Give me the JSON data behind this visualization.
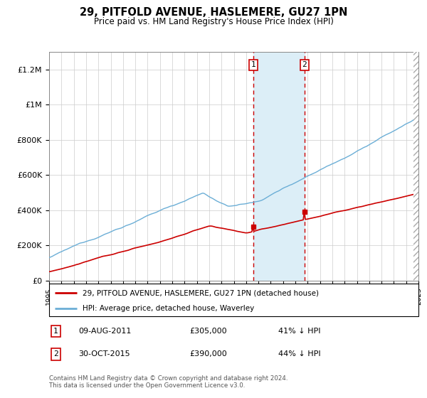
{
  "title": "29, PITFOLD AVENUE, HASLEMERE, GU27 1PN",
  "subtitle": "Price paid vs. HM Land Registry's House Price Index (HPI)",
  "hpi_label": "HPI: Average price, detached house, Waverley",
  "property_label": "29, PITFOLD AVENUE, HASLEMERE, GU27 1PN (detached house)",
  "t1_year_float": 2011.58,
  "t2_year_float": 2015.75,
  "t1_price": 305000,
  "t2_price": 390000,
  "t1_date": "09-AUG-2011",
  "t2_date": "30-OCT-2015",
  "t1_hpi": "41% ↓ HPI",
  "t2_hpi": "44% ↓ HPI",
  "hpi_color": "#6baed6",
  "property_color": "#cc0000",
  "shade_color": "#dceef7",
  "footer": "Contains HM Land Registry data © Crown copyright and database right 2024.\nThis data is licensed under the Open Government Licence v3.0.",
  "ylim": [
    0,
    1300000
  ],
  "yticks": [
    0,
    200000,
    400000,
    600000,
    800000,
    1000000,
    1200000
  ],
  "ytick_labels": [
    "£0",
    "£200K",
    "£400K",
    "£600K",
    "£800K",
    "£1M",
    "£1.2M"
  ],
  "xmin": 1995,
  "xmax": 2025
}
